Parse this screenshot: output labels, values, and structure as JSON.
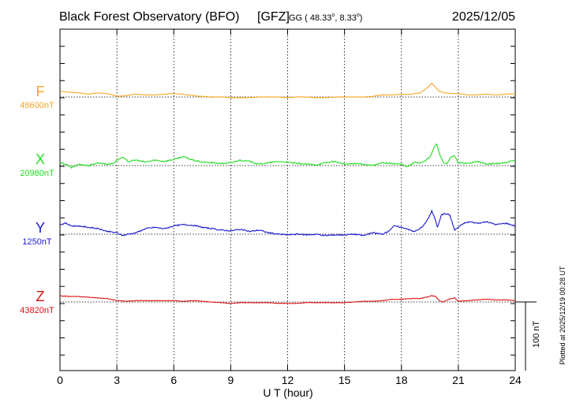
{
  "header": {
    "title": "Black Forest Observatory (BFO)",
    "institute": "[GFZ]",
    "coords_prefix": "GG ( 48.33",
    "deg1": "o",
    "coords_mid": ",   8.33",
    "deg2": "o",
    "coords_suffix": ")",
    "date": "2025/12/05"
  },
  "plotted_note": "Plotted at 2025/12/19 00:28 UT",
  "chart_data": {
    "type": "line",
    "title": "Black Forest Observatory (BFO)",
    "xlabel": "U T (hour)",
    "xlim": [
      0,
      24
    ],
    "xticks": [
      0,
      3,
      6,
      9,
      12,
      15,
      18,
      21,
      24
    ],
    "scale_bar": {
      "label": "100 nT",
      "value_nT": 100
    },
    "series": [
      {
        "name": "F",
        "baseline_label": "48600nT",
        "baseline_nT": 48600,
        "color": "#f5a623",
        "x": [
          0,
          0.5,
          1,
          1.5,
          2,
          2.5,
          3,
          3.5,
          4,
          4.5,
          5,
          5.5,
          6,
          6.5,
          7,
          7.5,
          8,
          8.5,
          9,
          9.5,
          10,
          10.5,
          11,
          11.5,
          12,
          12.5,
          13,
          13.5,
          14,
          14.5,
          15,
          15.5,
          16,
          16.5,
          17,
          17.5,
          18,
          18.5,
          19,
          19.3,
          19.6,
          19.8,
          20,
          20.3,
          20.6,
          21,
          21.5,
          22,
          22.5,
          23,
          23.5,
          24
        ],
        "values": [
          8,
          7,
          6,
          4,
          6,
          5,
          1,
          2,
          4,
          3,
          3,
          4,
          5,
          4,
          2,
          1,
          0,
          0,
          -1,
          -1,
          -1,
          0,
          0,
          0,
          -1,
          0,
          0,
          -1,
          -1,
          0,
          0,
          0,
          0,
          1,
          3,
          3,
          4,
          4,
          6,
          12,
          20,
          14,
          8,
          6,
          5,
          5,
          3,
          3,
          4,
          3,
          4,
          5
        ]
      },
      {
        "name": "X",
        "baseline_label": "20980nT",
        "baseline_nT": 20980,
        "color": "#22dd22",
        "x": [
          0,
          0.3,
          0.6,
          1,
          1.5,
          2,
          2.5,
          2.8,
          3,
          3.3,
          3.6,
          4,
          4.5,
          5,
          5.5,
          6,
          6.5,
          7,
          7.5,
          8,
          8.5,
          9,
          9.5,
          10,
          10.5,
          11,
          11.5,
          12,
          12.5,
          13,
          13.5,
          14,
          14.5,
          15,
          15.5,
          16,
          16.5,
          17,
          17.5,
          18,
          18.3,
          18.7,
          19,
          19.3,
          19.5,
          19.7,
          19.85,
          20,
          20.2,
          20.4,
          20.6,
          20.8,
          21,
          21.5,
          22,
          22.5,
          23,
          23.5,
          24
        ],
        "values": [
          4,
          2,
          -3,
          2,
          0,
          4,
          2,
          3,
          8,
          12,
          6,
          8,
          5,
          8,
          6,
          9,
          13,
          8,
          5,
          4,
          3,
          4,
          8,
          6,
          2,
          4,
          6,
          5,
          3,
          2,
          1,
          4,
          6,
          2,
          3,
          2,
          0,
          4,
          3,
          2,
          -2,
          5,
          4,
          8,
          12,
          25,
          32,
          18,
          5,
          2,
          12,
          14,
          4,
          3,
          6,
          2,
          3,
          4,
          8
        ]
      },
      {
        "name": "Y",
        "baseline_label": "1250nT",
        "baseline_nT": 1250,
        "color": "#1a1acc",
        "x": [
          0,
          0.3,
          0.6,
          1,
          1.5,
          2,
          2.5,
          3,
          3.3,
          3.6,
          4,
          4.5,
          5,
          5.5,
          6,
          6.5,
          7,
          7.5,
          8,
          8.5,
          9,
          9.5,
          10,
          10.5,
          11,
          11.5,
          12,
          12.5,
          13,
          13.5,
          14,
          14.5,
          15,
          15.5,
          16,
          16.5,
          17,
          17.3,
          17.6,
          18,
          18.3,
          18.6,
          18.9,
          19.2,
          19.4,
          19.6,
          19.75,
          19.9,
          20.1,
          20.3,
          20.55,
          20.8,
          21,
          21.3,
          21.6,
          22,
          22.5,
          23,
          23.5,
          24
        ],
        "values": [
          14,
          16,
          12,
          12,
          10,
          8,
          4,
          2,
          -2,
          0,
          2,
          8,
          10,
          8,
          12,
          14,
          13,
          10,
          8,
          6,
          5,
          7,
          4,
          6,
          2,
          0,
          -1,
          0,
          -1,
          0,
          -2,
          -1,
          -1,
          0,
          -2,
          2,
          0,
          4,
          12,
          10,
          8,
          4,
          6,
          14,
          22,
          34,
          24,
          10,
          28,
          30,
          28,
          6,
          10,
          16,
          18,
          16,
          18,
          14,
          16,
          12
        ]
      },
      {
        "name": "Z",
        "baseline_label": "43820nT",
        "baseline_nT": 43820,
        "color": "#dd1111",
        "x": [
          0,
          0.5,
          1,
          1.5,
          2,
          2.5,
          3,
          3.5,
          4,
          4.5,
          5,
          5.5,
          6,
          6.5,
          7,
          7.5,
          8,
          8.5,
          9,
          9.5,
          10,
          10.5,
          11,
          11.5,
          12,
          12.5,
          13,
          13.5,
          14,
          14.5,
          15,
          15.5,
          16,
          16.5,
          17,
          17.5,
          18,
          18.5,
          19,
          19.3,
          19.6,
          19.8,
          20,
          20.2,
          20.5,
          20.8,
          21,
          21.5,
          22,
          22.5,
          23,
          23.5,
          24
        ],
        "values": [
          9,
          8,
          8,
          7,
          6,
          5,
          2,
          1,
          2,
          2,
          2,
          2,
          2,
          1,
          2,
          1,
          0,
          -1,
          -2,
          -1,
          -1,
          -1,
          -1,
          -2,
          -2,
          -2,
          -1,
          -1,
          -1,
          -1,
          -1,
          0,
          1,
          1,
          2,
          4,
          4,
          5,
          5,
          7,
          9,
          8,
          2,
          0,
          4,
          6,
          1,
          2,
          3,
          4,
          3,
          3,
          2
        ]
      }
    ]
  }
}
